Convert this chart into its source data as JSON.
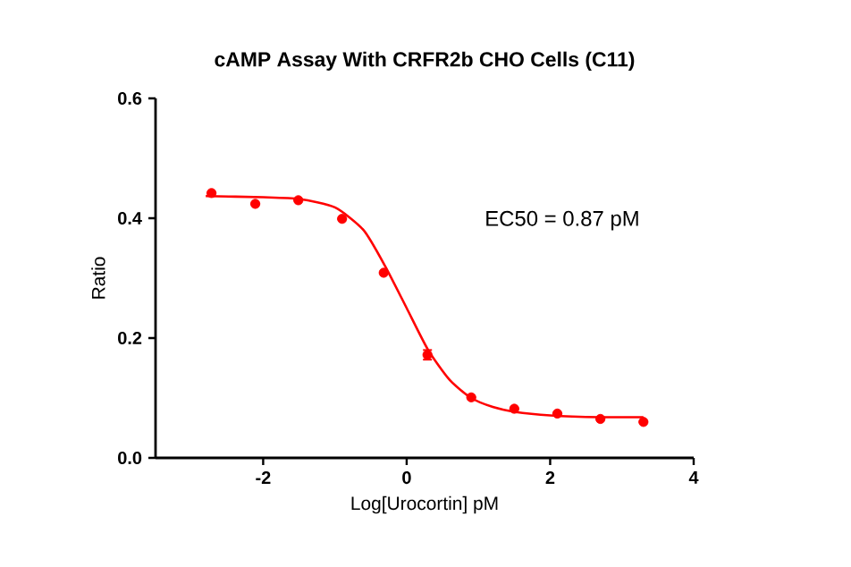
{
  "chart_data": {
    "type": "scatter",
    "title": "cAMP Assay With CRFR2b CHO Cells (C11)",
    "xlabel": "Log[Urocortin] pM",
    "ylabel": "Ratio",
    "annotations": [
      "EC50 = 0.87 pM"
    ],
    "xlim": [
      -3.5,
      4
    ],
    "xticks": [
      -2,
      0,
      2,
      4
    ],
    "ylim": [
      0,
      0.6
    ],
    "yticks": [
      {
        "value": 0,
        "label": "0.0"
      },
      0.2,
      0.4,
      0.6
    ],
    "grid": false,
    "series": [
      {
        "color": "#ff0000",
        "marker": "circle",
        "x": [
          -2.72,
          -2.11,
          -1.51,
          -0.9,
          -0.32,
          0.29,
          0.9,
          1.5,
          2.1,
          2.7,
          3.3
        ],
        "values": [
          0.442,
          0.424,
          0.43,
          0.399,
          0.309,
          0.172,
          0.101,
          0.082,
          0.074,
          0.065,
          0.06
        ],
        "errors": [
          null,
          null,
          null,
          null,
          null,
          0.008,
          null,
          null,
          null,
          null,
          null
        ]
      },
      {
        "type": "line",
        "color": "#ff0000",
        "marker": "none",
        "x": [
          -2.8,
          -2,
          -1.5,
          -1,
          -0.6,
          -0.3,
          0,
          0.3,
          0.6,
          0.9,
          1.2,
          1.5,
          2,
          2.7,
          3.3
        ],
        "values": [
          0.437,
          0.435,
          0.432,
          0.418,
          0.38,
          0.32,
          0.25,
          0.18,
          0.13,
          0.1,
          0.085,
          0.077,
          0.071,
          0.068,
          0.068
        ]
      }
    ]
  }
}
